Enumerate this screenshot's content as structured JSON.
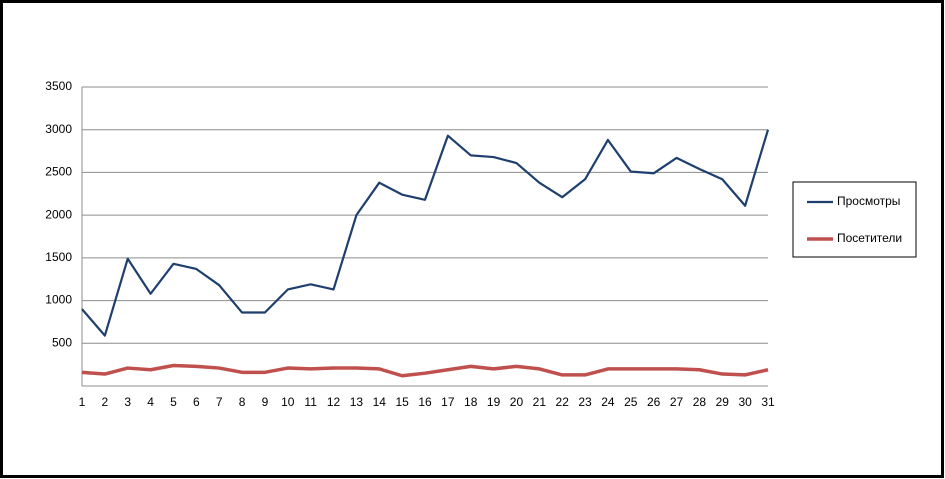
{
  "chart_data": {
    "type": "line",
    "x": [
      1,
      2,
      3,
      4,
      5,
      6,
      7,
      8,
      9,
      10,
      11,
      12,
      13,
      14,
      15,
      16,
      17,
      18,
      19,
      20,
      21,
      22,
      23,
      24,
      25,
      26,
      27,
      28,
      29,
      30,
      31
    ],
    "xlim": [
      1,
      31
    ],
    "series": [
      {
        "name": "Просмотры",
        "color": "#1f3f6e",
        "values": [
          900,
          590,
          1490,
          1080,
          1430,
          1370,
          1180,
          860,
          860,
          1130,
          1190,
          1130,
          2000,
          2380,
          2240,
          2180,
          2930,
          2700,
          2680,
          2610,
          2380,
          2210,
          2420,
          2880,
          2510,
          2490,
          2670,
          2540,
          2420,
          2110,
          3000
        ]
      },
      {
        "name": "Посетители",
        "color": "#c0504d",
        "values": [
          160,
          140,
          210,
          190,
          240,
          230,
          210,
          160,
          160,
          210,
          200,
          210,
          210,
          200,
          120,
          150,
          190,
          230,
          200,
          230,
          200,
          130,
          130,
          200,
          200,
          200,
          200,
          190,
          140,
          130,
          190
        ]
      }
    ],
    "ylim": [
      0,
      3500
    ],
    "yticks": [
      500,
      1000,
      1500,
      2000,
      2500,
      3000,
      3500
    ],
    "grid": true,
    "legend": "right"
  }
}
